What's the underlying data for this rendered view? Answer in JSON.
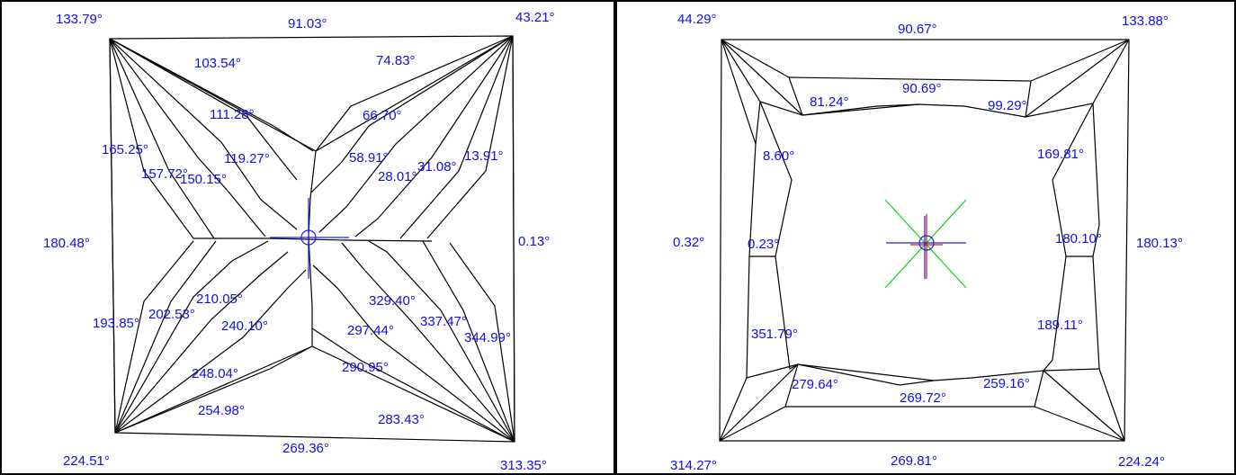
{
  "colors": {
    "line": "#000000",
    "label": "#1010e0",
    "crosshair_blue": "#2020e0",
    "crosshair_red": "#e01010",
    "crosshair_green": "#10d010",
    "border": "#000000"
  },
  "left_panel": {
    "corner_angles": {
      "top_left": "133.79°",
      "top_right": "43.21°",
      "bottom_left": "224.51°",
      "bottom_right": "313.35°"
    },
    "edge_angles": {
      "top": "91.03°",
      "left": "180.48°",
      "right": "0.13°",
      "bottom": "269.36°"
    },
    "facet_angles": [
      "103.54°",
      "74.83°",
      "111.28°",
      "66.70°",
      "165.25°",
      "119.27°",
      "58.91°",
      "13.91°",
      "157.72°",
      "150.15°",
      "28.01°",
      "31.08°",
      "210.05°",
      "329.40°",
      "193.85°",
      "202.53°",
      "240.10°",
      "297.44°",
      "337.47°",
      "344.99°",
      "248.04°",
      "290.95°",
      "254.98°",
      "283.43°"
    ]
  },
  "right_panel": {
    "corner_angles": {
      "top_left": "44.29°",
      "top_right": "133.88°",
      "bottom_left": "314.27°",
      "bottom_right": "224.24°"
    },
    "edge_angles": {
      "top": "90.67°",
      "left": "0.32°",
      "right": "180.13°",
      "bottom": "269.81°"
    },
    "facet_angles": [
      "81.24°",
      "90.69°",
      "99.29°",
      "8.60°",
      "169.81°",
      "0.23°",
      "180.10°",
      "351.79°",
      "189.11°",
      "279.64°",
      "269.72°",
      "259.16°"
    ]
  }
}
